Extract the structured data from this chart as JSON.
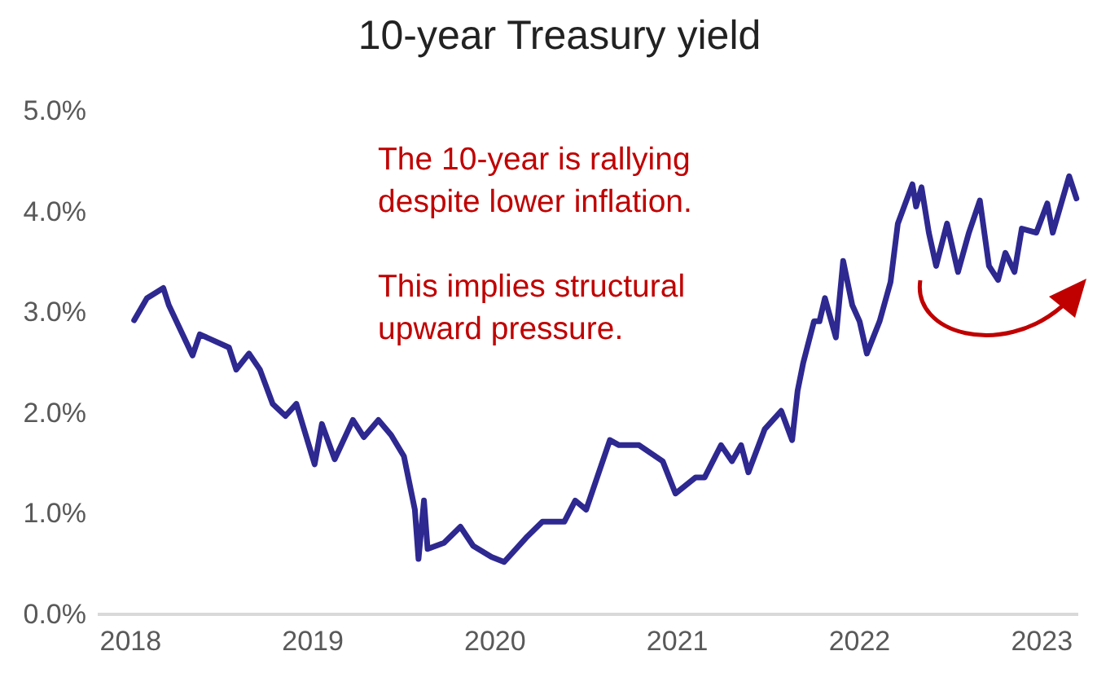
{
  "chart_data": {
    "type": "line",
    "title": "10-year Treasury yield",
    "annotations": [
      "The 10-year is rallying\ndespite lower inflation.",
      "This implies structural\nupward pressure."
    ],
    "xlim": [
      2017.82,
      2023.2
    ],
    "xticks": [
      2018,
      2019,
      2020,
      2021,
      2022,
      2023
    ],
    "ylim": [
      0,
      5
    ],
    "yticks": [
      {
        "value": 0,
        "label": "0.0%"
      },
      {
        "value": 1,
        "label": "1.0%"
      },
      {
        "value": 2,
        "label": "2.0%"
      },
      {
        "value": 3,
        "label": "3.0%"
      },
      {
        "value": 4,
        "label": "4.0%"
      },
      {
        "value": 5,
        "label": "5.0%"
      }
    ],
    "grid": false,
    "marker": "none",
    "line_style": "solid",
    "series": [
      {
        "color": "#2e2891",
        "x": [
          2018.02,
          2018.09,
          2018.18,
          2018.21,
          2018.34,
          2018.38,
          2018.54,
          2018.58,
          2018.65,
          2018.71,
          2018.78,
          2018.85,
          2018.91,
          2019.01,
          2019.05,
          2019.12,
          2019.22,
          2019.28,
          2019.36,
          2019.43,
          2019.5,
          2019.56,
          2019.58,
          2019.61,
          2019.63,
          2019.72,
          2019.81,
          2019.88,
          2019.98,
          2020.05,
          2020.17,
          2020.26,
          2020.38,
          2020.44,
          2020.5,
          2020.63,
          2020.68,
          2020.79,
          2020.92,
          2020.99,
          2021.1,
          2021.15,
          2021.24,
          2021.3,
          2021.35,
          2021.39,
          2021.48,
          2021.57,
          2021.63,
          2021.66,
          2021.69,
          2021.75,
          2021.78,
          2021.81,
          2021.87,
          2021.91,
          2021.96,
          2022.0,
          2022.04,
          2022.11,
          2022.17,
          2022.21,
          2022.29,
          2022.31,
          2022.34,
          2022.38,
          2022.42,
          2022.48,
          2022.54,
          2022.6,
          2022.66,
          2022.71,
          2022.76,
          2022.8,
          2022.85,
          2022.89,
          2022.97,
          2023.03,
          2023.06,
          2023.15,
          2023.19
        ],
        "values": [
          2.92,
          3.14,
          3.24,
          3.07,
          2.57,
          2.78,
          2.65,
          2.43,
          2.59,
          2.43,
          2.09,
          1.97,
          2.09,
          1.49,
          1.89,
          1.54,
          1.93,
          1.76,
          1.93,
          1.78,
          1.57,
          1.04,
          0.55,
          1.13,
          0.65,
          0.71,
          0.87,
          0.68,
          0.57,
          0.52,
          0.76,
          0.92,
          0.92,
          1.13,
          1.04,
          1.73,
          1.68,
          1.68,
          1.52,
          1.2,
          1.36,
          1.36,
          1.68,
          1.52,
          1.68,
          1.41,
          1.84,
          2.02,
          1.73,
          2.22,
          2.49,
          2.91,
          2.91,
          3.14,
          2.75,
          3.51,
          3.07,
          2.91,
          2.59,
          2.91,
          3.3,
          3.88,
          4.27,
          4.05,
          4.24,
          3.79,
          3.46,
          3.88,
          3.4,
          3.79,
          4.11,
          3.46,
          3.32,
          3.59,
          3.4,
          3.83,
          3.79,
          4.08,
          3.79,
          4.35,
          4.13
        ]
      }
    ]
  }
}
